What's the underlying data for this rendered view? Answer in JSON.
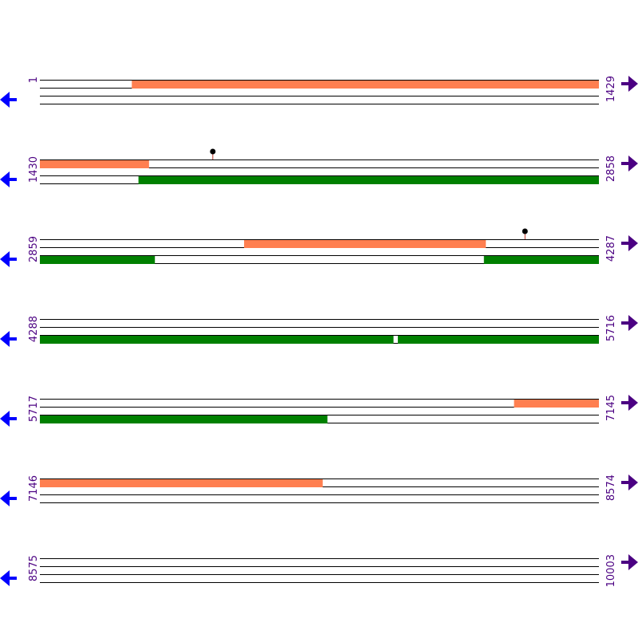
{
  "colors": {
    "forward_feature": "#ff7f50",
    "reverse_feature": "#008000",
    "position_label": "#4b0082",
    "forward_arrow": "#4b0082",
    "reverse_arrow": "#0000ff",
    "backbone": "#000000",
    "marker": "#000000",
    "marker_stem": "#c0392b"
  },
  "icons": {
    "forward": "arrow-right-icon",
    "reverse": "arrow-left-icon",
    "marker": "pin-icon"
  },
  "rows": [
    {
      "start": "1",
      "end": "1429",
      "start_bp": 1,
      "end_bp": 1429,
      "forward": [
        {
          "from": 236,
          "to": 1429
        }
      ],
      "reverse": [],
      "markers": []
    },
    {
      "start": "1430",
      "end": "2858",
      "start_bp": 1430,
      "end_bp": 2858,
      "forward": [
        {
          "from": 1430,
          "to": 1708
        }
      ],
      "reverse": [
        {
          "from": 1682,
          "to": 2858
        }
      ],
      "markers": [
        {
          "pos": 1872
        }
      ]
    },
    {
      "start": "2859",
      "end": "4287",
      "start_bp": 2859,
      "end_bp": 4287,
      "forward": [
        {
          "from": 3381,
          "to": 3998
        }
      ],
      "reverse": [
        {
          "from": 2859,
          "to": 3152
        },
        {
          "from": 3994,
          "to": 4287
        }
      ],
      "markers": [
        {
          "pos": 4099
        }
      ]
    },
    {
      "start": "4288",
      "end": "5716",
      "start_bp": 4288,
      "end_bp": 5716,
      "forward": [],
      "reverse": [
        {
          "from": 4288,
          "to": 5191
        },
        {
          "from": 5203,
          "to": 5716
        }
      ],
      "markers": []
    },
    {
      "start": "5717",
      "end": "7145",
      "start_bp": 5717,
      "end_bp": 7145,
      "forward": [
        {
          "from": 6929,
          "to": 7145
        }
      ],
      "reverse": [
        {
          "from": 5717,
          "to": 6451
        }
      ],
      "markers": []
    },
    {
      "start": "7146",
      "end": "8574",
      "start_bp": 7146,
      "end_bp": 8574,
      "forward": [
        {
          "from": 7146,
          "to": 7868
        }
      ],
      "reverse": [],
      "markers": []
    },
    {
      "start": "8575",
      "end": "10003",
      "start_bp": 8575,
      "end_bp": 10003,
      "forward": [],
      "reverse": [],
      "markers": []
    }
  ]
}
